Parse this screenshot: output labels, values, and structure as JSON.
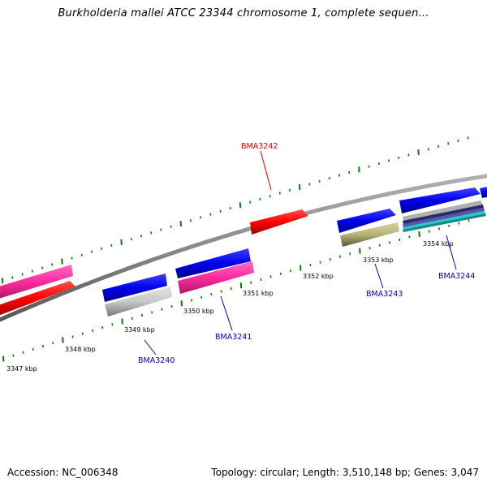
{
  "title": "Burkholderia mallei ATCC 23344 chromosome 1, complete sequen...",
  "footer": {
    "accession": "Accession: NC_006348",
    "summary": "Topology: circular; Length: 3,510,148 bp; Genes: 3,047"
  },
  "colors": {
    "backbone": "#808080",
    "ticks": "#117711",
    "highlight_label": "#dd0000",
    "gene_label": "#0000bb",
    "blue": "#0000ee",
    "red": "#ff0000",
    "pink": "#ff2aa0",
    "gray": "#c8c8c8",
    "olive": "#b8b478",
    "cyan": "#22cccc"
  },
  "ruler": [
    {
      "label": "3347 kbp"
    },
    {
      "label": "3348 kbp"
    },
    {
      "label": "3349 kbp"
    },
    {
      "label": "3350 kbp"
    },
    {
      "label": "3351 kbp"
    },
    {
      "label": "3352 kbp"
    },
    {
      "label": "3353 kbp"
    },
    {
      "label": "3354 kbp"
    }
  ],
  "gene_labels": [
    {
      "text": "BMA3242",
      "highlight": true
    },
    {
      "text": "BMA3240",
      "highlight": false
    },
    {
      "text": "BMA3241",
      "highlight": false
    },
    {
      "text": "BMA3243",
      "highlight": false
    },
    {
      "text": "BMA3244",
      "highlight": false
    }
  ]
}
